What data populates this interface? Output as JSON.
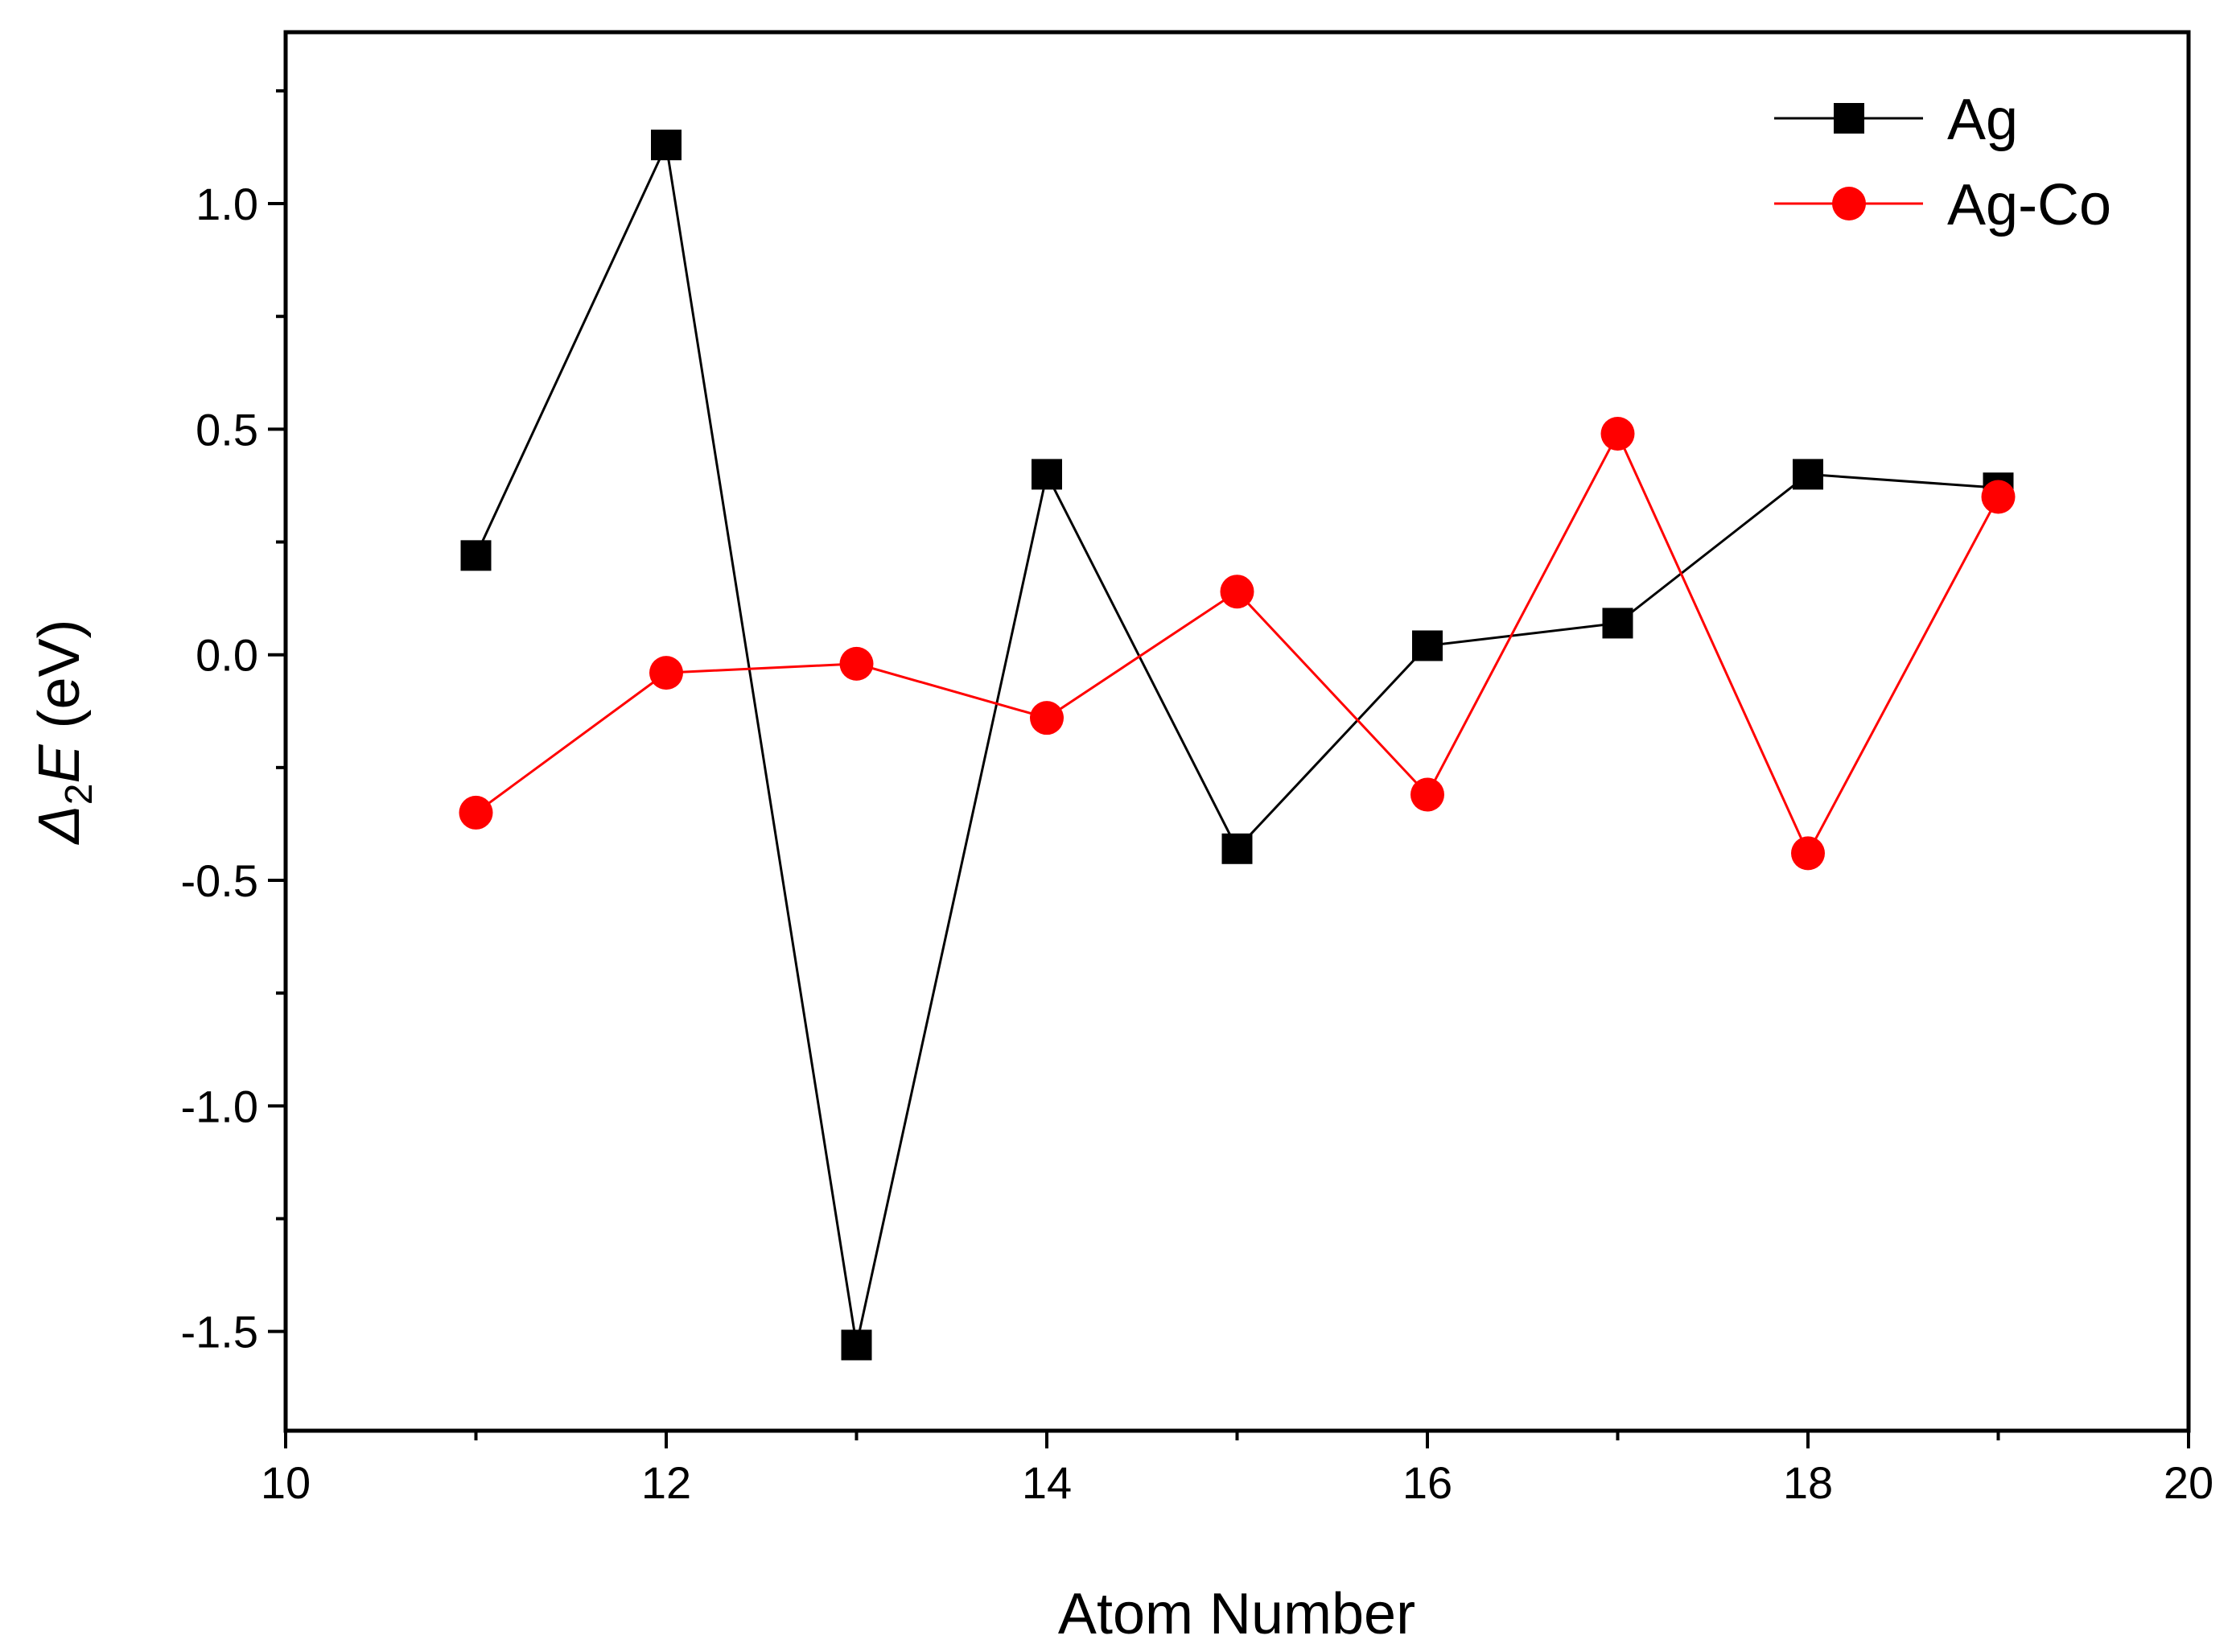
{
  "chart_data": {
    "type": "line",
    "title": "",
    "xlabel": "Atom Number",
    "ylabel": {
      "delta": "Δ",
      "subscript": "2",
      "symbol": "E",
      "unit": " (eV)"
    },
    "xlim": [
      10,
      20
    ],
    "ylim": [
      -1.72,
      1.38
    ],
    "x_ticks": [
      10,
      12,
      14,
      16,
      18,
      20
    ],
    "x_tick_labels": [
      "10",
      "12",
      "14",
      "16",
      "18",
      "20"
    ],
    "y_ticks": [
      -1.5,
      -1.0,
      -0.5,
      0.0,
      0.5,
      1.0
    ],
    "y_tick_labels": [
      "-1.5",
      "-1.0",
      "-0.5",
      "0.0",
      "0.5",
      "1.0"
    ],
    "grid": false,
    "legend_position": "top-right",
    "series": [
      {
        "name": "Ag",
        "color": "#000000",
        "marker": "square",
        "x": [
          11,
          12,
          13,
          14,
          15,
          16,
          17,
          18,
          19
        ],
        "values": [
          0.22,
          1.13,
          -1.53,
          0.4,
          -0.43,
          0.02,
          0.07,
          0.4,
          0.37
        ]
      },
      {
        "name": "Ag-Co",
        "color": "#ff0000",
        "marker": "circle",
        "x": [
          11,
          12,
          13,
          14,
          15,
          16,
          17,
          18,
          19
        ],
        "values": [
          -0.35,
          -0.04,
          -0.02,
          -0.14,
          0.14,
          -0.31,
          0.49,
          -0.44,
          0.35
        ]
      }
    ]
  }
}
